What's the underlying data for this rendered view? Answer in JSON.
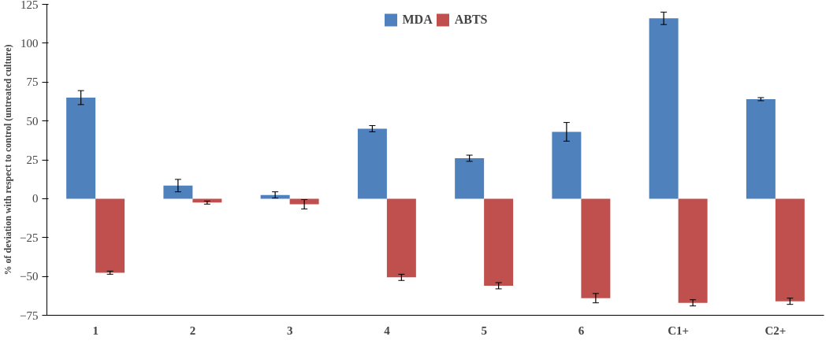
{
  "chart_data": {
    "type": "bar",
    "ylabel": "% of deviation with respect to control (untreated culture)",
    "categories": [
      "1",
      "2",
      "3",
      "4",
      "5",
      "6",
      "C1+",
      "C2+"
    ],
    "series": [
      {
        "name": "MDA",
        "color": "#4f81bd",
        "values": [
          65,
          8.4,
          2.4,
          45,
          26,
          43,
          116,
          64
        ],
        "errors": [
          4.5,
          4,
          2,
          2,
          2,
          6,
          4,
          1
        ]
      },
      {
        "name": "ABTS",
        "color": "#c0504d",
        "values": [
          -47.6,
          -2.5,
          -3.6,
          -50.6,
          -56,
          -64,
          -67,
          -66
        ],
        "errors": [
          1,
          1,
          3,
          2,
          2,
          3,
          2,
          2
        ]
      }
    ],
    "ylim": [
      -75,
      125
    ],
    "yticks": [
      -75,
      -50,
      -25,
      0,
      25,
      50,
      75,
      100,
      125
    ],
    "grid": false,
    "legend": "top"
  }
}
